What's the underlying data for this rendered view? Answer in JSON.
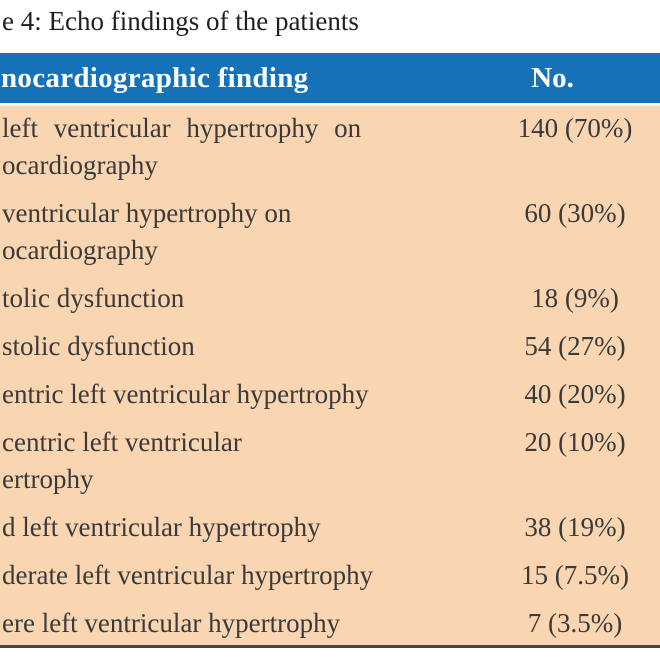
{
  "caption": "e 4: Echo findings of the patients",
  "table": {
    "header": {
      "finding_label": "nocardiographic finding",
      "no_label": "No."
    },
    "rows": [
      {
        "finding_lines": [
          "left ventricular hypertrophy on",
          "ocardiography"
        ],
        "value": "140 (70%)"
      },
      {
        "finding_lines": [
          "ventricular hypertrophy on",
          "ocardiography"
        ],
        "value": "60 (30%)"
      },
      {
        "finding_lines": [
          "tolic dysfunction"
        ],
        "value": "18 (9%)"
      },
      {
        "finding_lines": [
          "stolic dysfunction"
        ],
        "value": "54 (27%)"
      },
      {
        "finding_lines": [
          "entric left ventricular hypertrophy"
        ],
        "value": "40 (20%)"
      },
      {
        "finding_lines": [
          "centric left ventricular",
          "ertrophy"
        ],
        "value": "20 (10%)"
      },
      {
        "finding_lines": [
          "d left ventricular hypertrophy"
        ],
        "value": "38 (19%)"
      },
      {
        "finding_lines": [
          "derate left ventricular hypertrophy"
        ],
        "value": "15 (7.5%)"
      },
      {
        "finding_lines": [
          "ere left ventricular hypertrophy"
        ],
        "value": "7 (3.5%)"
      }
    ],
    "colors": {
      "header_bg": "#1672b8",
      "header_text": "#ffffff",
      "body_bg": "#fad5b2",
      "body_text": "#3a3a3a",
      "bottom_rule": "#4a4543"
    }
  }
}
